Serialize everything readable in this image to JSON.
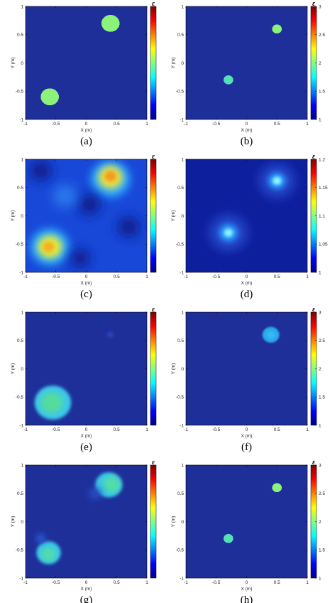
{
  "chart_data": [
    {
      "type": "heatmap",
      "panel": "(a)",
      "xlabel": "X (m)",
      "ylabel": "Y (m)",
      "xlim": [
        -1,
        1
      ],
      "ylim": [
        -1,
        1
      ],
      "xticks": [
        "-1",
        "-0.5",
        "0",
        "0.5",
        "1"
      ],
      "yticks": [
        "1",
        "0.5",
        "0",
        "-0.5",
        "-1"
      ],
      "colorbar": {
        "label": "ε",
        "ticks": [],
        "tick_labels": []
      },
      "background": "#1e2f9a",
      "blobs": [
        {
          "x": 0.4,
          "y": 0.7,
          "r": 0.15,
          "color": "#8cf27a",
          "blur": 0,
          "pixelated": true
        },
        {
          "x": -0.6,
          "y": -0.6,
          "r": 0.15,
          "color": "#8cf27a",
          "blur": 0,
          "pixelated": true
        }
      ]
    },
    {
      "type": "heatmap",
      "panel": "(b)",
      "xlabel": "X (m)",
      "ylabel": "Y (m)",
      "xlim": [
        -1,
        1
      ],
      "ylim": [
        -1,
        1
      ],
      "xticks": [
        "-1",
        "-0.5",
        "0",
        "0.5",
        "1"
      ],
      "yticks": [
        "1",
        "0.5",
        "0",
        "-0.5",
        "-1"
      ],
      "colorbar": {
        "label": "ε",
        "ticks": [
          3,
          2.5,
          2,
          1.5,
          1
        ],
        "tick_labels": [
          "3",
          "2.5",
          "2",
          "1.5",
          "1"
        ]
      },
      "background": "#1e2f9a",
      "blobs": [
        {
          "x": 0.5,
          "y": 0.6,
          "r": 0.08,
          "color": "#8cf27a",
          "blur": 0,
          "pixelated": true
        },
        {
          "x": -0.3,
          "y": -0.3,
          "r": 0.08,
          "color": "#55e0b8",
          "blur": 0,
          "pixelated": true
        }
      ]
    },
    {
      "type": "heatmap",
      "panel": "(c)",
      "xlabel": "X (m)",
      "ylabel": "Y (m)",
      "xlim": [
        -1,
        1
      ],
      "ylim": [
        -1,
        1
      ],
      "xticks": [
        "-1",
        "-0.5",
        "0",
        "0.5",
        "1"
      ],
      "yticks": [
        "1",
        "0.5",
        "0",
        "-0.5",
        "-1"
      ],
      "colorbar": {
        "label": "ε",
        "ticks": [],
        "tick_labels": []
      },
      "background": "#1848d8",
      "blobs": [
        {
          "x": 0.4,
          "y": 0.65,
          "r": 0.32,
          "color": "#2fb0ff",
          "blur": 6,
          "pixelated": false
        },
        {
          "x": 0.4,
          "y": 0.68,
          "r": 0.2,
          "color": "#f2e33a",
          "blur": 5,
          "pixelated": false
        },
        {
          "x": 0.4,
          "y": 0.7,
          "r": 0.1,
          "color": "#f29a20",
          "blur": 3,
          "pixelated": false
        },
        {
          "x": -0.6,
          "y": -0.55,
          "r": 0.32,
          "color": "#2fb0ff",
          "blur": 6,
          "pixelated": false
        },
        {
          "x": -0.6,
          "y": -0.55,
          "r": 0.2,
          "color": "#e8ee3a",
          "blur": 5,
          "pixelated": false
        },
        {
          "x": -0.62,
          "y": -0.55,
          "r": 0.1,
          "color": "#f2b020",
          "blur": 3,
          "pixelated": false
        },
        {
          "x": -0.75,
          "y": 0.8,
          "r": 0.18,
          "color": "#0c1f8c",
          "blur": 8,
          "pixelated": false
        },
        {
          "x": 0.05,
          "y": 0.2,
          "r": 0.18,
          "color": "#0c1f8c",
          "blur": 8,
          "pixelated": false
        },
        {
          "x": 0.7,
          "y": -0.2,
          "r": 0.18,
          "color": "#0c1f8c",
          "blur": 8,
          "pixelated": false
        },
        {
          "x": -0.1,
          "y": -0.75,
          "r": 0.16,
          "color": "#0c1f8c",
          "blur": 8,
          "pixelated": false
        },
        {
          "x": -0.35,
          "y": 0.35,
          "r": 0.2,
          "color": "#2a78ee",
          "blur": 8,
          "pixelated": false
        }
      ]
    },
    {
      "type": "heatmap",
      "panel": "(d)",
      "xlabel": "X (m)",
      "ylabel": "Y (m)",
      "xlim": [
        -1,
        1
      ],
      "ylim": [
        -1,
        1
      ],
      "xticks": [
        "-1",
        "-0.5",
        "0",
        "0.5",
        "1"
      ],
      "yticks": [
        "1",
        "0.5",
        "0",
        "-0.5",
        "-1"
      ],
      "colorbar": {
        "label": "ε",
        "ticks": [
          1.2,
          1.15,
          1.1,
          1.05,
          1
        ],
        "tick_labels": [
          "1.2",
          "1.15",
          "1.1",
          "1.05",
          "1"
        ]
      },
      "background": "#0e1f9e",
      "blobs": [
        {
          "x": 0.5,
          "y": 0.62,
          "r": 0.3,
          "color": "#2244c8",
          "blur": 7,
          "pixelated": false
        },
        {
          "x": 0.5,
          "y": 0.62,
          "r": 0.14,
          "color": "#2aa0ff",
          "blur": 4,
          "pixelated": false
        },
        {
          "x": 0.5,
          "y": 0.62,
          "r": 0.07,
          "color": "#8ef5ff",
          "blur": 2,
          "pixelated": false
        },
        {
          "x": -0.3,
          "y": -0.3,
          "r": 0.32,
          "color": "#2244c8",
          "blur": 7,
          "pixelated": false
        },
        {
          "x": -0.3,
          "y": -0.3,
          "r": 0.15,
          "color": "#2aa0ff",
          "blur": 4,
          "pixelated": false
        },
        {
          "x": -0.3,
          "y": -0.3,
          "r": 0.07,
          "color": "#8ef5ff",
          "blur": 2,
          "pixelated": false
        }
      ]
    },
    {
      "type": "heatmap",
      "panel": "(e)",
      "xlabel": "X (m)",
      "ylabel": "Y (m)",
      "xlim": [
        -1,
        1
      ],
      "ylim": [
        -1,
        1
      ],
      "xticks": [
        "-1",
        "-0.5",
        "0",
        "0.5",
        "1"
      ],
      "yticks": [
        "1",
        "0.5",
        "0",
        "-0.5",
        "-1"
      ],
      "colorbar": {
        "label": "ε",
        "ticks": [],
        "tick_labels": []
      },
      "background": "#1e2f9a",
      "blobs": [
        {
          "x": -0.55,
          "y": -0.6,
          "r": 0.3,
          "color": "#3ec8e8",
          "blur": 2,
          "pixelated": false
        },
        {
          "x": -0.57,
          "y": -0.6,
          "r": 0.18,
          "color": "#55dc9c",
          "blur": 4,
          "pixelated": false
        },
        {
          "x": 0.4,
          "y": 0.6,
          "r": 0.05,
          "color": "#2a48c0",
          "blur": 2,
          "pixelated": false
        }
      ]
    },
    {
      "type": "heatmap",
      "panel": "(f)",
      "xlabel": "X (m)",
      "ylabel": "Y (m)",
      "xlim": [
        -1,
        1
      ],
      "ylim": [
        -1,
        1
      ],
      "xticks": [
        "-1",
        "-0.5",
        "0",
        "0.5",
        "1"
      ],
      "yticks": [
        "1",
        "0.5",
        "0",
        "-0.5",
        "-1"
      ],
      "colorbar": {
        "label": "ε",
        "ticks": [
          3,
          2.5,
          2,
          1.5,
          1
        ],
        "tick_labels": [
          "3",
          "2.5",
          "2",
          "1.5",
          "1"
        ]
      },
      "background": "#1e2f9a",
      "blobs": [
        {
          "x": 0.4,
          "y": 0.6,
          "r": 0.14,
          "color": "#2aa4ee",
          "blur": 1,
          "pixelated": false
        },
        {
          "x": 0.4,
          "y": 0.6,
          "r": 0.07,
          "color": "#38c0ec",
          "blur": 3,
          "pixelated": false
        }
      ]
    },
    {
      "type": "heatmap",
      "panel": "(g)",
      "xlabel": "X (m)",
      "ylabel": "Y (m)",
      "xlim": [
        -1,
        1
      ],
      "ylim": [
        -1,
        1
      ],
      "xticks": [
        "-1",
        "-0.5",
        "0",
        "0.5",
        "1"
      ],
      "yticks": [
        "1",
        "0.5",
        "0",
        "-0.5",
        "-1"
      ],
      "colorbar": {
        "label": "ε",
        "ticks": [],
        "tick_labels": []
      },
      "background": "#1e2f9a",
      "blobs": [
        {
          "x": 0.37,
          "y": 0.65,
          "r": 0.22,
          "color": "#38c8e8",
          "blur": 2,
          "pixelated": false
        },
        {
          "x": 0.42,
          "y": 0.66,
          "r": 0.14,
          "color": "#55dca8",
          "blur": 4,
          "pixelated": false
        },
        {
          "x": -0.62,
          "y": -0.55,
          "r": 0.2,
          "color": "#38c8e8",
          "blur": 2,
          "pixelated": false
        },
        {
          "x": -0.62,
          "y": -0.58,
          "r": 0.12,
          "color": "#55dca8",
          "blur": 4,
          "pixelated": false
        },
        {
          "x": -0.75,
          "y": -0.3,
          "r": 0.08,
          "color": "#2a58d0",
          "blur": 4,
          "pixelated": false
        },
        {
          "x": 0.15,
          "y": 0.5,
          "r": 0.1,
          "color": "#2a50c8",
          "blur": 5,
          "pixelated": false
        }
      ]
    },
    {
      "type": "heatmap",
      "panel": "(h)",
      "xlabel": "X (m)",
      "ylabel": "Y (m)",
      "xlim": [
        -1,
        1
      ],
      "ylim": [
        -1,
        1
      ],
      "xticks": [
        "-1",
        "-0.5",
        "0",
        "0.5",
        "1"
      ],
      "yticks": [
        "1",
        "0.5",
        "0",
        "-0.5",
        "-1"
      ],
      "colorbar": {
        "label": "ε",
        "ticks": [
          3,
          2.5,
          2,
          1.5,
          1
        ],
        "tick_labels": [
          "3",
          "2.5",
          "2",
          "1.5",
          "1"
        ]
      },
      "background": "#1e2f9a",
      "blobs": [
        {
          "x": 0.5,
          "y": 0.6,
          "r": 0.08,
          "color": "#8cf27a",
          "blur": 0,
          "pixelated": true
        },
        {
          "x": -0.3,
          "y": -0.3,
          "r": 0.08,
          "color": "#55e0b8",
          "blur": 0,
          "pixelated": true
        }
      ]
    }
  ],
  "colormap": [
    "#00008f",
    "#0000ff",
    "#0080ff",
    "#00ffff",
    "#80ff80",
    "#ffff00",
    "#ff8000",
    "#ff0000",
    "#800000"
  ]
}
